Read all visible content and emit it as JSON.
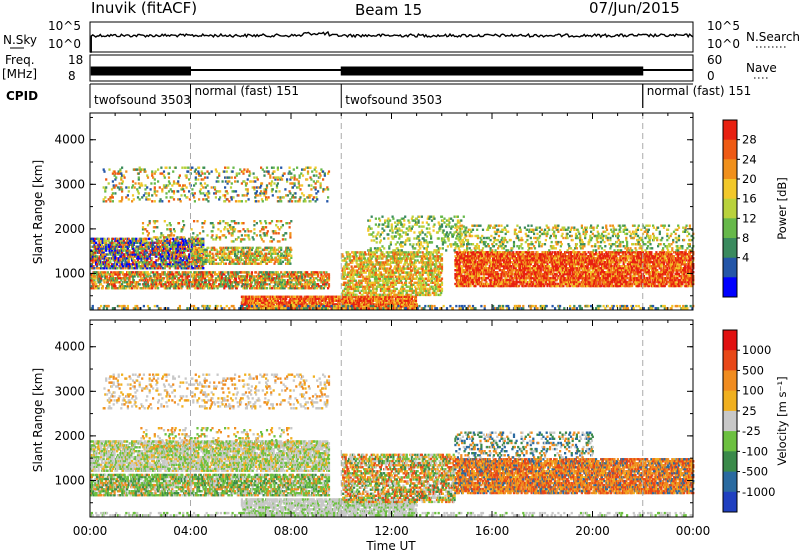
{
  "header": {
    "station": "Inuvik (fitACF)",
    "beam": "Beam 15",
    "date": "07/Jun/2015"
  },
  "strip_labels": {
    "nsky": "N.Sky",
    "nsky_ticks": [
      "10^5",
      "10^0"
    ],
    "nsearch": "N.Search",
    "nsearch_ticks": [
      "10^5",
      "10^0"
    ],
    "freq_top": "Freq.",
    "freq_unit": "[MHz]",
    "freq_ticks": [
      "18",
      "8"
    ],
    "nave": "Nave",
    "nave_ticks": [
      "60",
      "0"
    ],
    "cpid": "CPID"
  },
  "cpid_segments": [
    {
      "label": "twofsound 3503",
      "start_h": 0,
      "end_h": 4
    },
    {
      "label": "normal (fast) 151",
      "start_h": 4,
      "end_h": 10
    },
    {
      "label": "twofsound 3503",
      "start_h": 10,
      "end_h": 22
    },
    {
      "label": "normal (fast) 151",
      "start_h": 22,
      "end_h": 24
    }
  ],
  "colors": {
    "power_scale": [
      "#0000ff",
      "#2456a8",
      "#3a8a5e",
      "#66b84a",
      "#b9d23c",
      "#f2c82a",
      "#f0901c",
      "#ee5a14",
      "#e82010"
    ],
    "velocity_scale": [
      "#2040c0",
      "#2a6aa0",
      "#3a8a4a",
      "#6cc040",
      "#c8c8c8",
      "#f0b020",
      "#f08c20",
      "#e84818",
      "#e01010"
    ]
  },
  "chart_data": [
    {
      "type": "heatmap",
      "title": "",
      "xlabel": "",
      "ylabel": "Slant Range [km]",
      "xlim": [
        0,
        24
      ],
      "ylim": [
        180,
        4600
      ],
      "xticks": [
        "00:00",
        "04:00",
        "08:00",
        "12:00",
        "16:00",
        "20:00",
        "00:00"
      ],
      "yticks": [
        1000,
        2000,
        3000,
        4000
      ],
      "colorbar": {
        "label": "Power [dB]",
        "ticks": [
          28,
          24,
          20,
          16,
          12,
          8,
          4
        ]
      }
    },
    {
      "type": "heatmap",
      "title": "",
      "xlabel": "Time UT",
      "ylabel": "Slant Range [km]",
      "xlim": [
        0,
        24
      ],
      "ylim": [
        180,
        4600
      ],
      "xticks": [
        "00:00",
        "04:00",
        "08:00",
        "12:00",
        "16:00",
        "20:00",
        "00:00"
      ],
      "yticks": [
        1000,
        2000,
        3000,
        4000
      ],
      "colorbar": {
        "label": "Velocity [m s⁻¹]",
        "ticks": [
          1000,
          500,
          100,
          25,
          -25,
          -100,
          -500,
          -1000
        ]
      }
    }
  ]
}
